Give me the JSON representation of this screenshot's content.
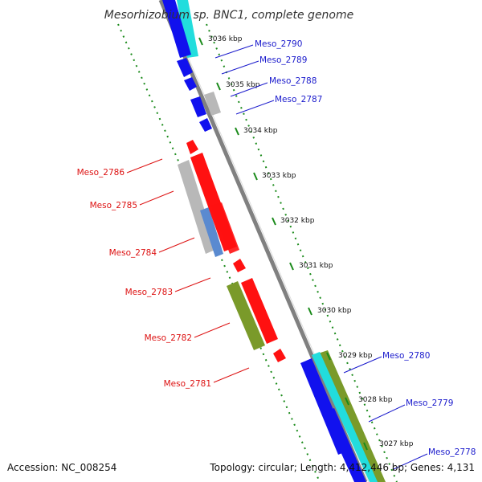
{
  "map": {
    "title": "Mesorhizobium sp. BNC1, complete genome",
    "accession": "Accession: NC_008254",
    "summary": "Topology: circular; Length: 4,412,446 bp; Genes: 4,131"
  },
  "colors": {
    "forward_label": "#1a1acc",
    "reverse_label": "#dd1111",
    "backbone": "#808080",
    "tick": "#1a8a1a",
    "gene_red": "#ff1111",
    "gene_blue": "#1111ee",
    "gene_cyan": "#22dddd",
    "gene_gray": "#b8b8b8",
    "gene_olive": "#7a9a2a",
    "gene_steel": "#5a8ad0"
  },
  "kbp_labels": [
    "3036 kbp",
    "3035 kbp",
    "3034 kbp",
    "3033 kbp",
    "3032 kbp",
    "3031 kbp",
    "3030 kbp",
    "3029 kbp",
    "3028 kbp",
    "3027 kbp"
  ],
  "forward_genes": [
    "Meso_2790",
    "Meso_2789",
    "Meso_2788",
    "Meso_2787",
    "Meso_2780",
    "Meso_2779",
    "Meso_2778"
  ],
  "reverse_genes": [
    "Meso_2786",
    "Meso_2785",
    "Meso_2784",
    "Meso_2783",
    "Meso_2782",
    "Meso_2781"
  ]
}
